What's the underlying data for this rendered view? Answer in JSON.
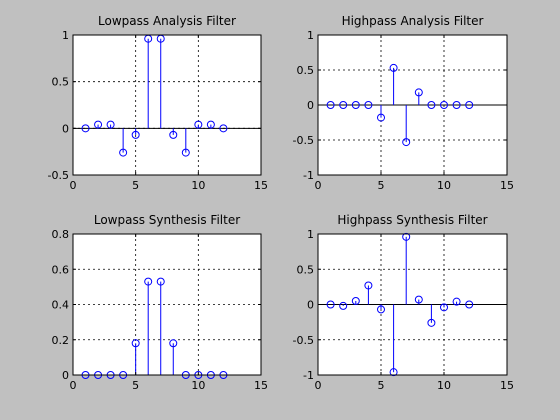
{
  "figure": {
    "background_color": "#c0c0c0",
    "axes_color": "#ffffff",
    "stem_color": "#0000ff"
  },
  "chart_data": [
    {
      "type": "stem",
      "title": "Lowpass Analysis Filter",
      "x": [
        1,
        2,
        3,
        4,
        5,
        6,
        7,
        8,
        9,
        10,
        11,
        12
      ],
      "values": [
        0.0,
        0.04,
        0.04,
        -0.26,
        -0.07,
        0.96,
        0.96,
        -0.07,
        -0.26,
        0.04,
        0.04,
        0.0
      ],
      "xlim": [
        0,
        15
      ],
      "ylim": [
        -0.5,
        1
      ],
      "xticks": [
        0,
        5,
        10,
        15
      ],
      "xtick_labels": [
        "0",
        "5",
        "10",
        "15"
      ],
      "yticks": [
        -0.5,
        0,
        0.5,
        1
      ],
      "ytick_labels": [
        "-0.5",
        "0",
        "0.5",
        "1"
      ],
      "grid": true,
      "baseline": 0
    },
    {
      "type": "stem",
      "title": "Highpass Analysis Filter",
      "x": [
        1,
        2,
        3,
        4,
        5,
        6,
        7,
        8,
        9,
        10,
        11,
        12
      ],
      "values": [
        0.0,
        0.0,
        0.0,
        0.0,
        -0.18,
        0.53,
        -0.53,
        0.18,
        0.0,
        0.0,
        0.0,
        0.0
      ],
      "xlim": [
        0,
        15
      ],
      "ylim": [
        -1,
        1
      ],
      "xticks": [
        0,
        5,
        10,
        15
      ],
      "xtick_labels": [
        "0",
        "5",
        "10",
        "15"
      ],
      "yticks": [
        -1,
        -0.5,
        0,
        0.5,
        1
      ],
      "ytick_labels": [
        "-1",
        "-0.5",
        "0",
        "0.5",
        "1"
      ],
      "grid": true,
      "baseline": 0
    },
    {
      "type": "stem",
      "title": "Lowpass Synthesis Filter",
      "x": [
        1,
        2,
        3,
        4,
        5,
        6,
        7,
        8,
        9,
        10,
        11,
        12
      ],
      "values": [
        0.0,
        0.0,
        0.0,
        0.0,
        0.18,
        0.53,
        0.53,
        0.18,
        0.0,
        0.0,
        0.0,
        0.0
      ],
      "xlim": [
        0,
        15
      ],
      "ylim": [
        0,
        0.8
      ],
      "xticks": [
        0,
        5,
        10,
        15
      ],
      "xtick_labels": [
        "0",
        "5",
        "10",
        "15"
      ],
      "yticks": [
        0,
        0.2,
        0.4,
        0.6,
        0.8
      ],
      "ytick_labels": [
        "0",
        "0.2",
        "0.4",
        "0.6",
        "0.8"
      ],
      "grid": true,
      "baseline": 0
    },
    {
      "type": "stem",
      "title": "Highpass Synthesis Filter",
      "x": [
        1,
        2,
        3,
        4,
        5,
        6,
        7,
        8,
        9,
        10,
        11,
        12
      ],
      "values": [
        0.0,
        -0.02,
        0.05,
        0.27,
        -0.07,
        -0.96,
        0.96,
        0.07,
        -0.26,
        -0.04,
        0.04,
        0.0
      ],
      "xlim": [
        0,
        15
      ],
      "ylim": [
        -1,
        1
      ],
      "xticks": [
        0,
        5,
        10,
        15
      ],
      "xtick_labels": [
        "0",
        "5",
        "10",
        "15"
      ],
      "yticks": [
        -1,
        -0.5,
        0,
        0.5,
        1
      ],
      "ytick_labels": [
        "-1",
        "-0.5",
        "0",
        "0.5",
        "1"
      ],
      "grid": true,
      "baseline": 0
    }
  ]
}
